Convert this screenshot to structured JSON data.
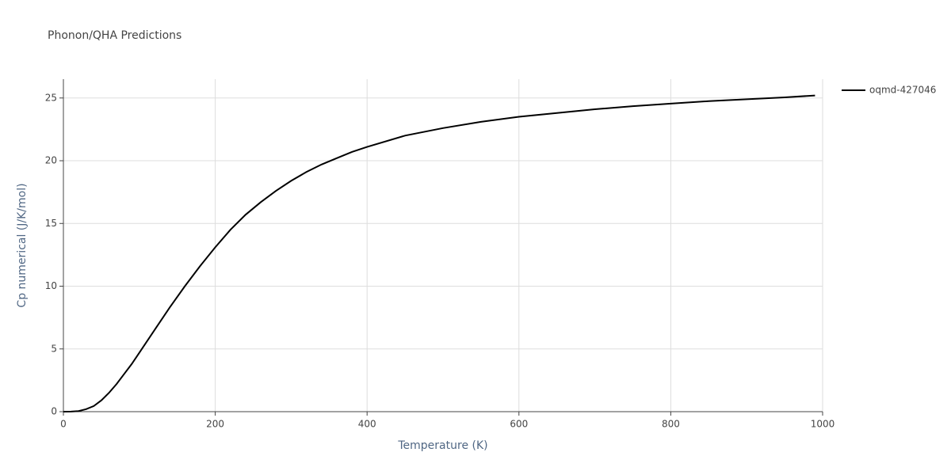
{
  "chart_data": {
    "type": "line",
    "title": "Phonon/QHA Predictions",
    "x_label": "Temperature (K)",
    "y_label": "Cp numerical (J/K/mol)",
    "x": [
      0,
      10,
      20,
      30,
      40,
      50,
      60,
      70,
      80,
      90,
      100,
      120,
      140,
      160,
      180,
      200,
      220,
      240,
      260,
      280,
      300,
      320,
      340,
      360,
      380,
      400,
      450,
      500,
      550,
      600,
      650,
      700,
      750,
      800,
      850,
      900,
      950,
      990
    ],
    "series": [
      {
        "name": "oqmd-427046",
        "color": "#000000",
        "values": [
          0,
          0.01,
          0.05,
          0.2,
          0.45,
          0.9,
          1.5,
          2.2,
          3.0,
          3.8,
          4.7,
          6.5,
          8.3,
          10.0,
          11.6,
          13.1,
          14.5,
          15.7,
          16.7,
          17.6,
          18.4,
          19.1,
          19.7,
          20.2,
          20.7,
          21.1,
          22.0,
          22.6,
          23.1,
          23.5,
          23.8,
          24.1,
          24.35,
          24.55,
          24.75,
          24.9,
          25.05,
          25.2
        ]
      }
    ],
    "xlim": [
      0,
      1000
    ],
    "ylim": [
      0,
      26.5
    ],
    "xticks": [
      0,
      200,
      400,
      600,
      800,
      1000
    ],
    "yticks": [
      0,
      5,
      10,
      15,
      20,
      25
    ],
    "grid": true
  }
}
